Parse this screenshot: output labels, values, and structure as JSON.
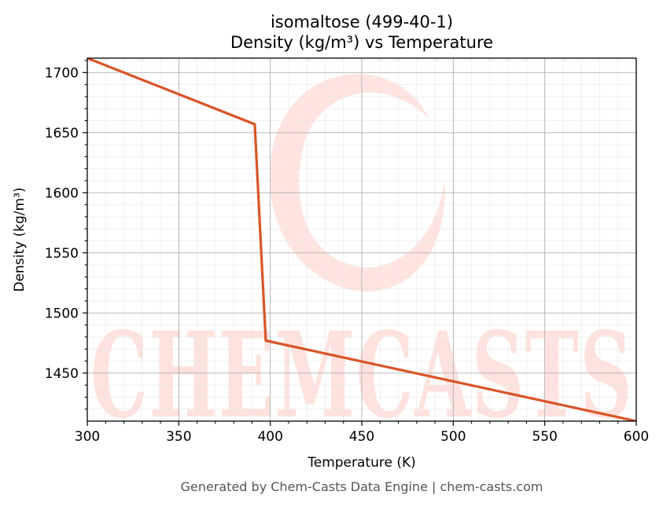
{
  "title": "isomaltose (499-40-1)",
  "subtitle": "Density (kg/m³) vs Temperature",
  "footer": "Generated by Chem-Casts Data Engine | chem-casts.com",
  "watermark": "CHEMCASTS",
  "colors": {
    "line": "#d95427",
    "watermark": "#ffd9d2",
    "grid_major": "#b0b0b0",
    "grid_minor": "#e6e6e6"
  },
  "chart_data": {
    "type": "line",
    "xlabel": "Temperature (K)",
    "ylabel": "Density (kg/m³)",
    "xlim": [
      300,
      600
    ],
    "ylim": [
      1410,
      1712
    ],
    "xticks": [
      300,
      350,
      400,
      450,
      500,
      550,
      600
    ],
    "yticks": [
      1450,
      1500,
      1550,
      1600,
      1650,
      1700
    ],
    "grid": true,
    "minor_grid": true,
    "series": [
      {
        "x": [
          300,
          391.5,
          397.5,
          600
        ],
        "y": [
          1712,
          1657,
          1477,
          1410
        ]
      }
    ]
  }
}
